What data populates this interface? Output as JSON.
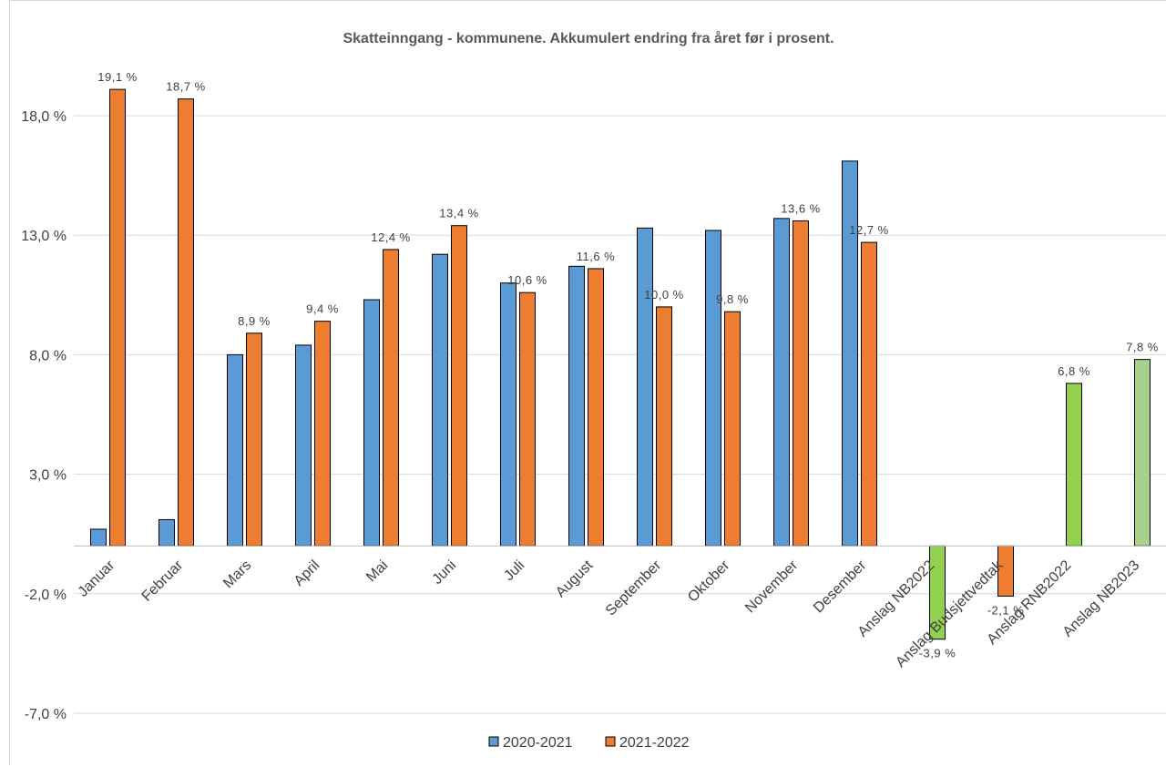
{
  "chart_data": {
    "type": "bar",
    "title": "Skatteinngang - kommunene. Akkumulert endring fra året før i prosent.",
    "xlabel": "",
    "ylabel": "",
    "ylim": [
      -7.0,
      21.0
    ],
    "yticks": [
      -7.0,
      -2.0,
      3.0,
      8.0,
      13.0,
      18.0
    ],
    "ytick_labels": [
      "-7,0 %",
      "-2,0 %",
      "3,0 %",
      "8,0 %",
      "13,0 %",
      "18,0 %"
    ],
    "grid": true,
    "legend_position": "bottom",
    "categories": [
      "Januar",
      "Februar",
      "Mars",
      "April",
      "Mai",
      "Juni",
      "Juli",
      "August",
      "September",
      "Oktober",
      "November",
      "Desember",
      "Anslag NB2022",
      "Anslag Budsjettvedtak",
      "Anslag RNB2022",
      "Anslag NB2023"
    ],
    "series": [
      {
        "name": "2020-2021",
        "color": "#5b9bd5",
        "values": [
          0.7,
          1.1,
          8.0,
          8.4,
          10.3,
          12.2,
          11.0,
          11.7,
          13.3,
          13.2,
          13.7,
          16.1,
          null,
          null,
          null,
          null
        ],
        "labels": [
          null,
          null,
          null,
          null,
          null,
          null,
          null,
          null,
          null,
          null,
          null,
          null,
          null,
          null,
          null,
          null
        ]
      },
      {
        "name": "2021-2022",
        "color": "#ed7d31",
        "values": [
          19.1,
          18.7,
          8.9,
          9.4,
          12.4,
          13.4,
          10.6,
          11.6,
          10.0,
          9.8,
          13.6,
          12.7,
          null,
          -2.1,
          null,
          null
        ],
        "labels": [
          "19,1 %",
          "18,7 %",
          "8,9 %",
          "9,4 %",
          "12,4 %",
          "13,4 %",
          "10,6 %",
          "11,6 %",
          "10,0 %",
          "9,8 %",
          "13,6 %",
          "12,7 %",
          null,
          "-2,1 %",
          null,
          null
        ]
      },
      {
        "name": "",
        "color": "#92d050",
        "values": [
          null,
          null,
          null,
          null,
          null,
          null,
          null,
          null,
          null,
          null,
          null,
          null,
          -3.9,
          null,
          6.8,
          7.8
        ],
        "labels": [
          null,
          null,
          null,
          null,
          null,
          null,
          null,
          null,
          null,
          null,
          null,
          null,
          "-3,9 %",
          null,
          "6,8 %",
          "7,8 %"
        ],
        "point_colors": [
          null,
          null,
          null,
          null,
          null,
          null,
          null,
          null,
          null,
          null,
          null,
          null,
          "#92d050",
          null,
          "#92d050",
          "#a9d18e"
        ]
      }
    ],
    "legend": [
      "2020-2021",
      "2021-2022"
    ]
  }
}
